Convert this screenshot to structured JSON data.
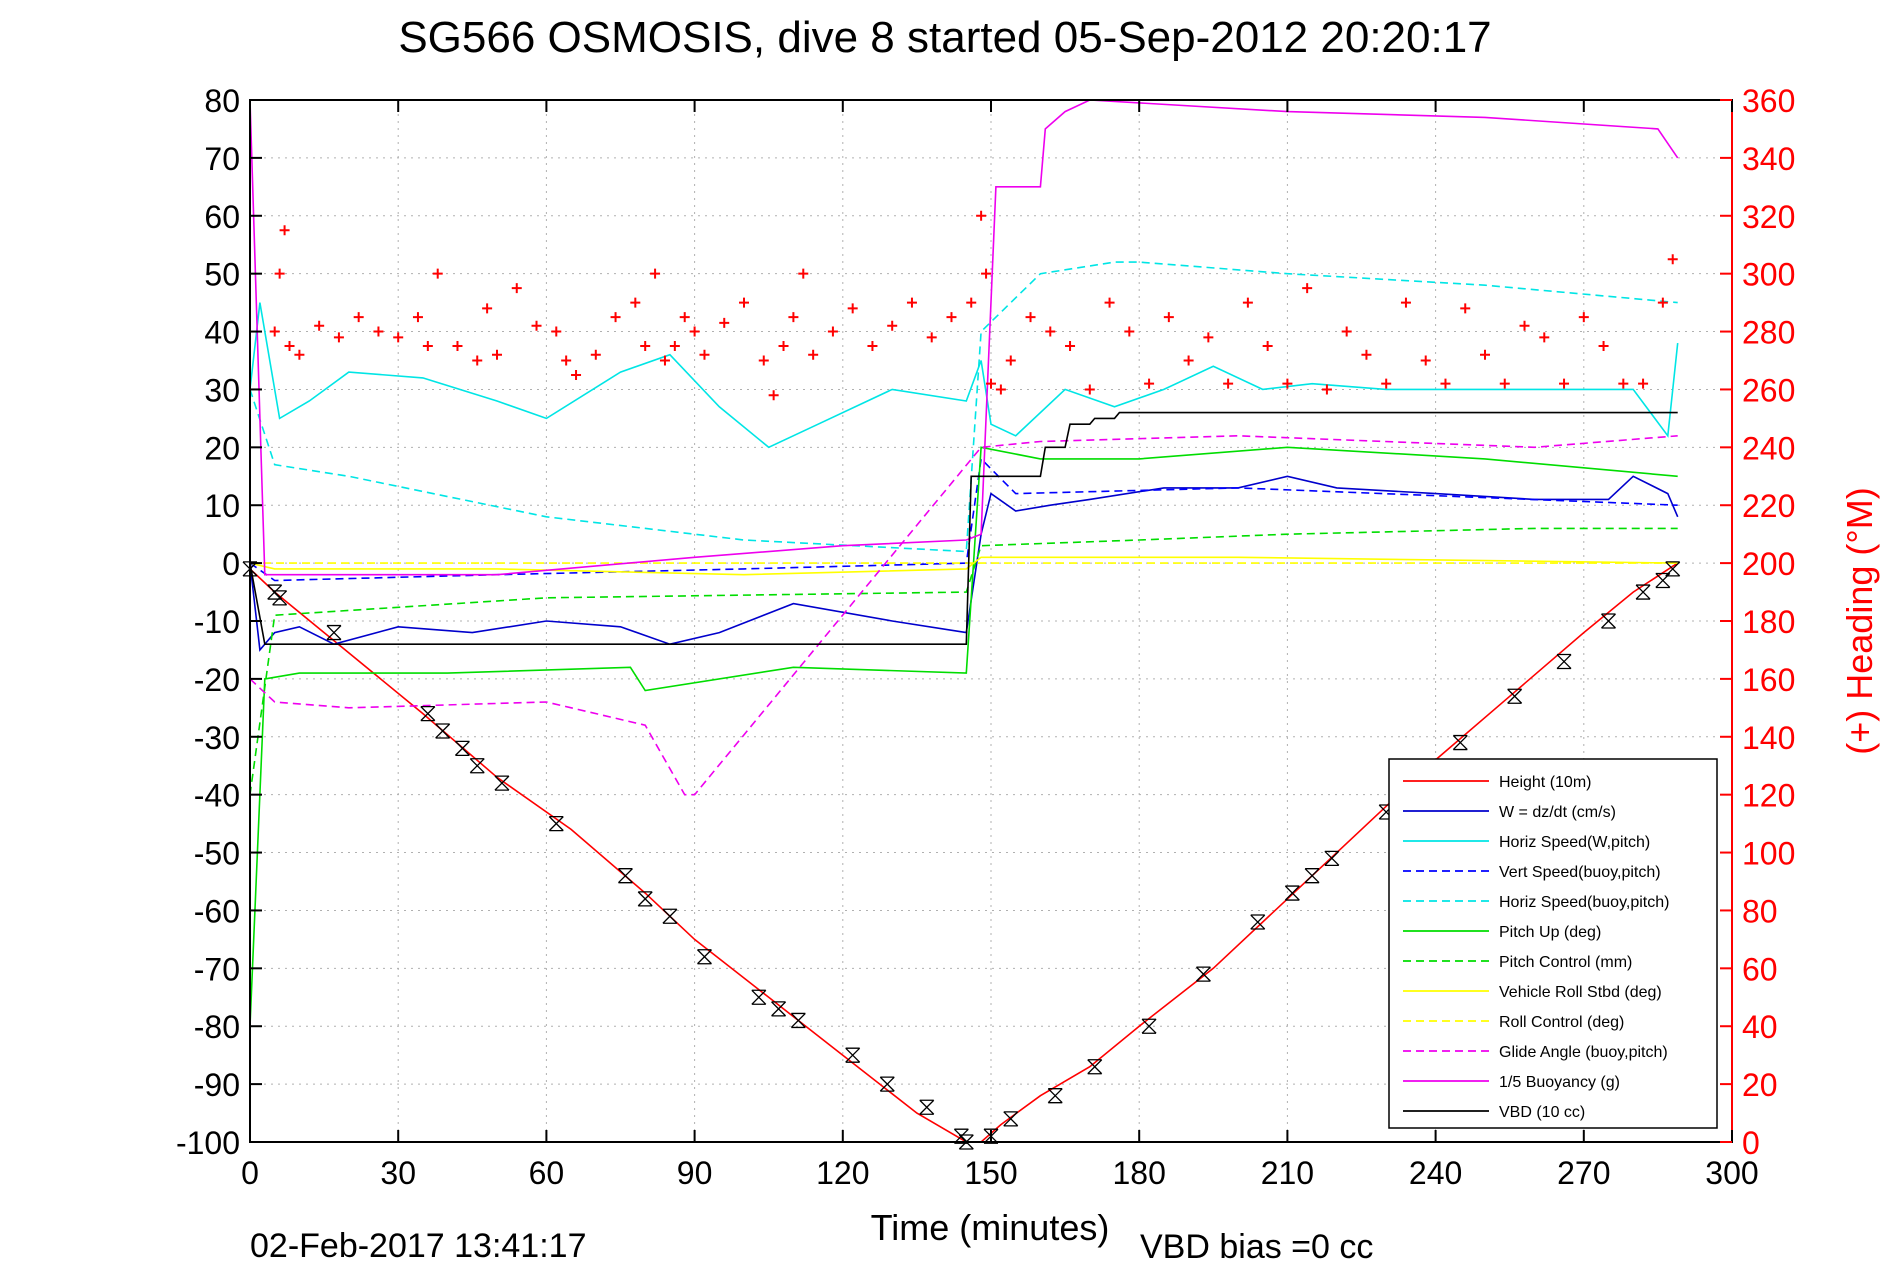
{
  "chart_data": {
    "type": "line",
    "title": "SG566 OSMOSIS, dive 8 started 05-Sep-2012 20:20:17",
    "xlabel": "Time (minutes)",
    "ylabel": "",
    "y2label": "(+) Heading (°M)",
    "footer_left": "02-Feb-2017 13:41:17",
    "footer_right": "VBD bias =0 cc",
    "xlim": [
      0,
      300
    ],
    "ylim": [
      -100,
      80
    ],
    "y2lim": [
      0,
      360
    ],
    "x_ticks": [
      0,
      30,
      60,
      90,
      120,
      150,
      180,
      210,
      240,
      270,
      300
    ],
    "y_ticks": [
      80,
      70,
      60,
      50,
      40,
      30,
      20,
      10,
      0,
      -10,
      -20,
      -30,
      -40,
      -50,
      -60,
      -70,
      -80,
      -90,
      -100
    ],
    "y2_ticks": [
      360,
      340,
      320,
      300,
      280,
      260,
      240,
      220,
      200,
      180,
      160,
      140,
      120,
      100,
      80,
      60,
      40,
      20,
      0
    ],
    "grid": true,
    "legend_position": "bottom-right",
    "colors": {
      "axis": "#000000",
      "right_axis": "#ff0000",
      "grid": "#b0b0b0"
    },
    "series": [
      {
        "name": "Height (10m)",
        "color": "#ff0000",
        "style": "solid",
        "x": [
          0,
          5,
          15,
          35,
          50,
          65,
          80,
          90,
          105,
          120,
          135,
          145,
          148,
          152,
          160,
          170,
          180,
          195,
          210,
          225,
          240,
          255,
          270,
          280,
          289
        ],
        "y": [
          -1,
          -5,
          -12,
          -26,
          -37,
          -46,
          -57,
          -65,
          -75,
          -85,
          -95,
          -100,
          -100,
          -97,
          -92,
          -87,
          -80,
          -70,
          -58,
          -46,
          -34,
          -23,
          -12,
          -5,
          0
        ]
      },
      {
        "name": "W = dz/dt (cm/s)",
        "color": "#0000cc",
        "style": "solid",
        "x": [
          0,
          2,
          5,
          10,
          17,
          30,
          45,
          60,
          75,
          85,
          95,
          110,
          130,
          145,
          148,
          150,
          155,
          162,
          170,
          185,
          200,
          210,
          220,
          240,
          260,
          275,
          280,
          287,
          289
        ],
        "y": [
          0,
          -15,
          -12,
          -11,
          -14,
          -11,
          -12,
          -10,
          -11,
          -14,
          -12,
          -7,
          -10,
          -12,
          5,
          12,
          9,
          10,
          11,
          13,
          13,
          15,
          13,
          12,
          11,
          11,
          15,
          12,
          8
        ]
      },
      {
        "name": "Horiz Speed(W,pitch)",
        "color": "#00e5e5",
        "style": "solid",
        "x": [
          0,
          2,
          6,
          12,
          20,
          35,
          50,
          60,
          75,
          85,
          95,
          105,
          115,
          130,
          145,
          148,
          150,
          155,
          165,
          175,
          185,
          195,
          205,
          215,
          230,
          250,
          270,
          280,
          287,
          289
        ],
        "y": [
          30,
          45,
          25,
          28,
          33,
          32,
          28,
          25,
          33,
          36,
          27,
          20,
          24,
          30,
          28,
          35,
          24,
          22,
          30,
          27,
          30,
          34,
          30,
          31,
          30,
          30,
          30,
          30,
          22,
          38
        ]
      },
      {
        "name": "Vert Speed(buoy,pitch)",
        "color": "#0000ff",
        "style": "dashed",
        "x": [
          0,
          5,
          50,
          100,
          145,
          148,
          155,
          200,
          289
        ],
        "y": [
          0,
          -3,
          -2,
          -1,
          0,
          18,
          12,
          13,
          10
        ]
      },
      {
        "name": "Horiz Speed(buoy,pitch)",
        "color": "#00e5e5",
        "style": "dashed",
        "x": [
          0,
          5,
          20,
          60,
          100,
          145,
          148,
          160,
          175,
          180,
          210,
          250,
          289
        ],
        "y": [
          30,
          17,
          15,
          8,
          4,
          2,
          40,
          50,
          52,
          52,
          50,
          48,
          45
        ]
      },
      {
        "name": "Pitch Up (deg)",
        "color": "#00dd00",
        "style": "solid",
        "x": [
          0,
          3,
          10,
          40,
          77,
          80,
          110,
          145,
          148,
          160,
          180,
          210,
          250,
          289
        ],
        "y": [
          -80,
          -20,
          -19,
          -19,
          -18,
          -22,
          -18,
          -19,
          20,
          18,
          18,
          20,
          18,
          15
        ]
      },
      {
        "name": "Pitch Control (mm)",
        "color": "#00dd00",
        "style": "dashed",
        "x": [
          0,
          5,
          60,
          145,
          148,
          180,
          210,
          260,
          289
        ],
        "y": [
          -40,
          -9,
          -6,
          -5,
          3,
          4,
          5,
          6,
          6
        ]
      },
      {
        "name": "Vehicle Roll Stbd (deg)",
        "color": "#ffff00",
        "style": "solid",
        "x": [
          0,
          5,
          50,
          100,
          145,
          148,
          200,
          289
        ],
        "y": [
          0,
          -1,
          -1,
          -2,
          -1,
          1,
          1,
          0
        ]
      },
      {
        "name": "Roll Control (deg)",
        "color": "#ffff00",
        "style": "dashed",
        "x": [
          0,
          5,
          100,
          145,
          148,
          289
        ],
        "y": [
          0,
          0,
          0,
          0,
          0,
          0
        ]
      },
      {
        "name": "Glide Angle (buoy,pitch)",
        "color": "#ee00ee",
        "style": "dashed",
        "x": [
          0,
          5,
          20,
          60,
          80,
          88,
          90,
          148,
          160,
          200,
          260,
          289
        ],
        "y": [
          -20,
          -24,
          -25,
          -24,
          -28,
          -40,
          -40,
          20,
          21,
          22,
          20,
          22
        ]
      },
      {
        "name": "1/5 Buoyancy (g)",
        "color": "#ee00ee",
        "style": "solid",
        "x": [
          0,
          3,
          50,
          90,
          120,
          145,
          148,
          151,
          160,
          161,
          165,
          170,
          210,
          250,
          285,
          289
        ],
        "y": [
          80,
          -2,
          -2,
          1,
          3,
          4,
          5,
          65,
          65,
          75,
          78,
          80,
          78,
          77,
          75,
          70
        ]
      },
      {
        "name": "VBD (10 cc)",
        "color": "#000000",
        "style": "solid",
        "x": [
          0,
          3,
          145,
          146,
          160,
          161,
          165,
          166,
          170,
          171,
          175,
          176,
          180,
          181,
          289
        ],
        "y": [
          0,
          -14,
          -14,
          15,
          15,
          20,
          20,
          24,
          24,
          25,
          25,
          26,
          26,
          26,
          26
        ]
      }
    ],
    "heading_series": {
      "name": "Heading",
      "color": "#ff0000",
      "marker": "+",
      "axis": "right",
      "x": [
        5,
        6,
        7,
        8,
        10,
        14,
        18,
        22,
        26,
        30,
        34,
        36,
        38,
        42,
        46,
        48,
        50,
        54,
        58,
        62,
        64,
        66,
        70,
        74,
        78,
        80,
        82,
        84,
        86,
        88,
        90,
        92,
        96,
        100,
        104,
        106,
        108,
        110,
        112,
        114,
        118,
        122,
        126,
        130,
        134,
        138,
        142,
        146,
        148,
        149,
        150,
        152,
        154,
        158,
        162,
        166,
        170,
        174,
        178,
        182,
        186,
        190,
        194,
        198,
        202,
        206,
        210,
        214,
        218,
        222,
        226,
        230,
        234,
        238,
        242,
        246,
        250,
        254,
        258,
        262,
        266,
        270,
        274,
        278,
        282,
        286,
        288
      ],
      "y": [
        280,
        300,
        315,
        275,
        272,
        282,
        278,
        285,
        280,
        278,
        285,
        275,
        300,
        275,
        270,
        288,
        272,
        295,
        282,
        280,
        270,
        265,
        272,
        285,
        290,
        275,
        300,
        270,
        275,
        285,
        280,
        272,
        283,
        290,
        270,
        258,
        275,
        285,
        300,
        272,
        280,
        288,
        275,
        282,
        290,
        278,
        285,
        290,
        320,
        300,
        262,
        260,
        270,
        285,
        280,
        275,
        260,
        290,
        280,
        262,
        285,
        270,
        278,
        262,
        290,
        275,
        262,
        295,
        260,
        280,
        272,
        262,
        290,
        270,
        262,
        288,
        272,
        262,
        282,
        278,
        262,
        285,
        275,
        262,
        262,
        290,
        305
      ]
    },
    "depth_markers": {
      "name": "depth markers",
      "color": "#000000",
      "x": [
        0,
        5,
        6,
        17,
        36,
        39,
        43,
        46,
        51,
        62,
        76,
        80,
        85,
        92,
        103,
        107,
        111,
        122,
        129,
        137,
        144,
        145,
        150,
        154,
        163,
        171,
        182,
        193,
        204,
        211,
        215,
        219,
        230,
        245,
        256,
        266,
        275,
        282,
        286,
        288
      ],
      "y": [
        -1,
        -5,
        -6,
        -12,
        -26,
        -29,
        -32,
        -35,
        -38,
        -45,
        -54,
        -58,
        -61,
        -68,
        -75,
        -77,
        -79,
        -85,
        -90,
        -94,
        -99,
        -100,
        -99,
        -96,
        -92,
        -87,
        -80,
        -71,
        -62,
        -57,
        -54,
        -51,
        -43,
        -31,
        -23,
        -17,
        -10,
        -5,
        -3,
        -1
      ]
    }
  }
}
